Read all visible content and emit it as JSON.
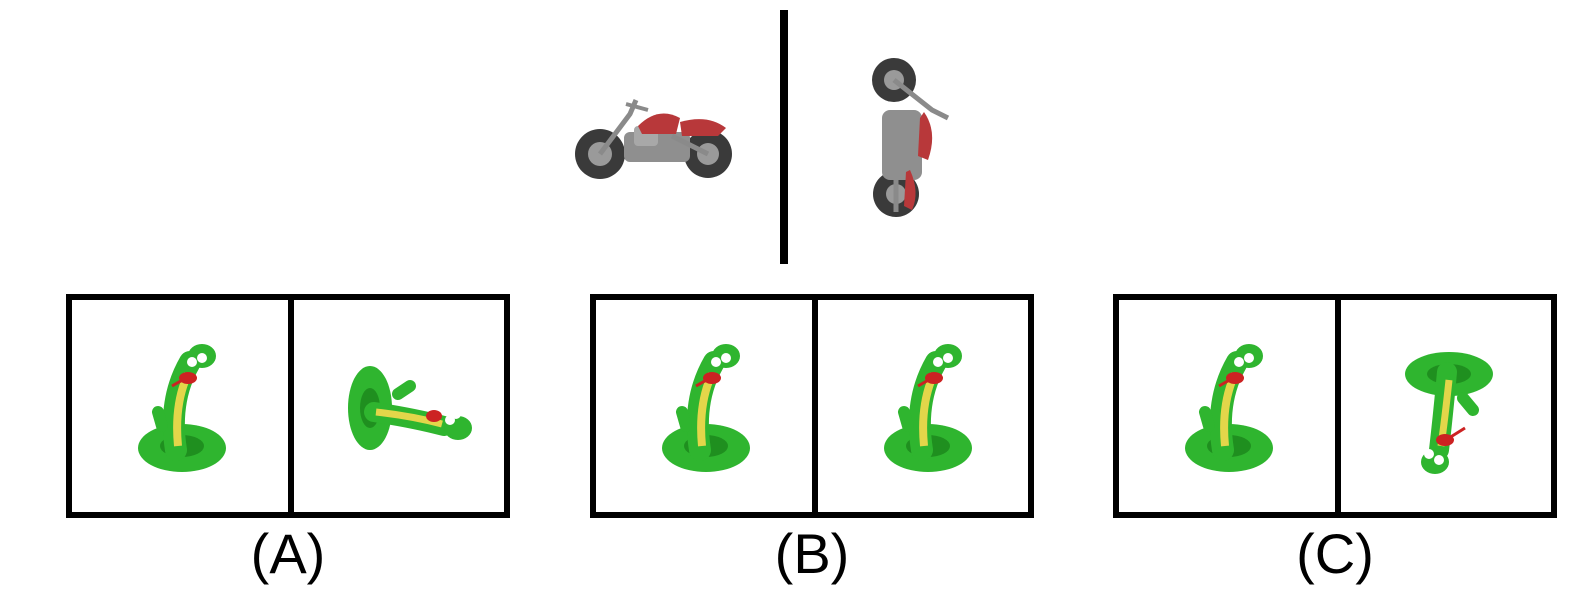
{
  "reference": {
    "left_object": "motorcycle-side-view",
    "right_object": "motorcycle-rotated-view"
  },
  "options": [
    {
      "label": "(A)",
      "left": "snake-upright",
      "right": "snake-rotated-sideways"
    },
    {
      "label": "(B)",
      "left": "snake-upright",
      "right": "snake-upright"
    },
    {
      "label": "(C)",
      "left": "snake-upright",
      "right": "snake-upside-down"
    }
  ],
  "colors": {
    "border": "#000000",
    "snake_green": "#2fb52f",
    "snake_belly": "#e3d64a",
    "motorcycle_gray": "#8a8a8a",
    "motorcycle_red": "#b8383a",
    "tire": "#3a3a3a"
  }
}
